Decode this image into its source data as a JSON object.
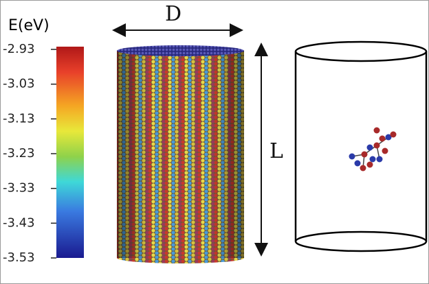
{
  "colorbar": {
    "label": "E(eV)",
    "range": [
      -3.53,
      -2.93
    ],
    "ticks": [
      -2.93,
      -3.03,
      -3.13,
      -3.23,
      -3.33,
      -3.43,
      -3.53
    ]
  },
  "labels": {
    "diameter": "D",
    "length": "L"
  }
}
